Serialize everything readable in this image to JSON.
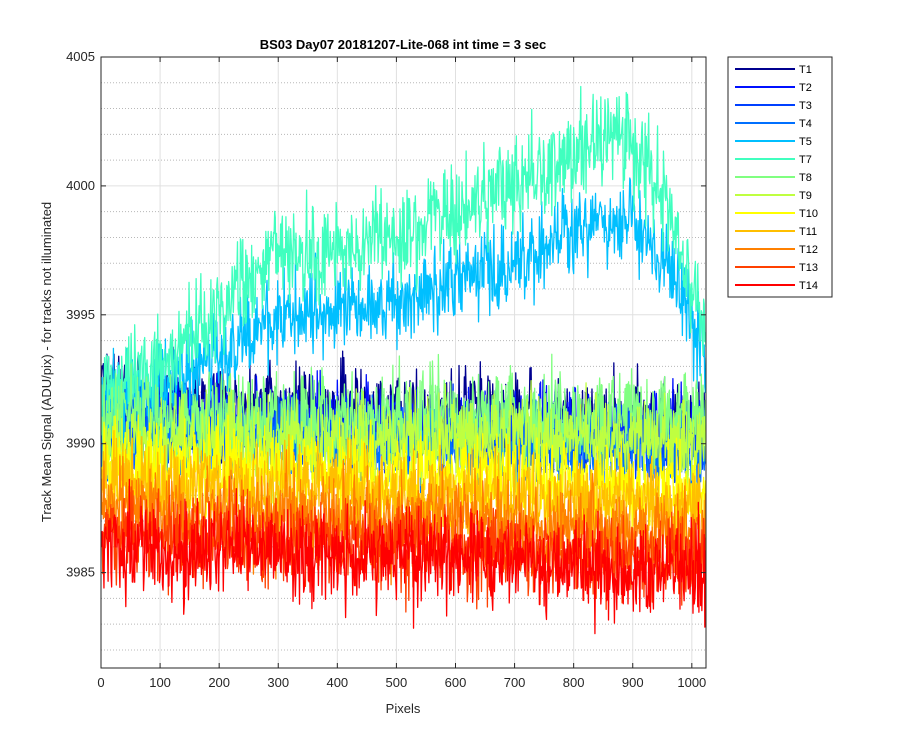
{
  "chart_data": {
    "type": "line",
    "title": "BS03 Day07 20181207-Lite-068 int time = 3 sec",
    "xlabel": "Pixels",
    "ylabel": "Track Mean Signal (ADU/pix) - for tracks not illuminated",
    "xlim": [
      0,
      1024
    ],
    "ylim": [
      3981.3,
      4005
    ],
    "xticks": [
      0,
      100,
      200,
      300,
      400,
      500,
      600,
      700,
      800,
      900,
      1000
    ],
    "yticks": [
      3985,
      3990,
      3995,
      4000,
      4005
    ],
    "grid": "major solid, minor dotted",
    "legend_position": "outside-right",
    "noise_note_points": 1024,
    "series": [
      {
        "name": "T1",
        "color": "#00008f",
        "baseline_x": [
          0,
          20,
          50,
          1024
        ],
        "baseline_y": [
          3992.5,
          3992.0,
          3991.5,
          3991.0
        ],
        "noise_amplitude": 1.5
      },
      {
        "name": "T2",
        "color": "#0010ff",
        "baseline_x": [
          0,
          1024
        ],
        "baseline_y": [
          3991.0,
          3990.5
        ],
        "noise_amplitude": 1.5
      },
      {
        "name": "T3",
        "color": "#0040ff",
        "baseline_x": [
          0,
          1024
        ],
        "baseline_y": [
          3990.5,
          3990.0
        ],
        "noise_amplitude": 1.4
      },
      {
        "name": "T4",
        "color": "#0070ff",
        "baseline_x": [
          0,
          400,
          800,
          1024
        ],
        "baseline_y": [
          3990.5,
          3990.0,
          3990.0,
          3989.5
        ],
        "noise_amplitude": 1.5
      },
      {
        "name": "T5",
        "color": "#00bfff",
        "baseline_x": [
          0,
          100,
          300,
          500,
          700,
          850,
          900,
          960,
          1024
        ],
        "baseline_y": [
          3991.5,
          3992.0,
          3995.0,
          3995.5,
          3997.0,
          3998.5,
          3998.5,
          3997.0,
          3993.0
        ],
        "noise_amplitude": 1.6
      },
      {
        "name": "T7",
        "color": "#40ffbf",
        "baseline_x": [
          0,
          100,
          300,
          500,
          700,
          850,
          900,
          960,
          1024
        ],
        "baseline_y": [
          3992.0,
          3993.0,
          3997.5,
          3998.0,
          4000.0,
          4002.0,
          4001.5,
          3999.5,
          3994.0
        ],
        "noise_amplitude": 1.8
      },
      {
        "name": "T8",
        "color": "#80ff80",
        "baseline_x": [
          0,
          1024
        ],
        "baseline_y": [
          3991.0,
          3991.0
        ],
        "noise_amplitude": 1.7
      },
      {
        "name": "T9",
        "color": "#bfff40",
        "baseline_x": [
          0,
          1024
        ],
        "baseline_y": [
          3990.0,
          3990.2
        ],
        "noise_amplitude": 1.6
      },
      {
        "name": "T10",
        "color": "#ffff00",
        "baseline_x": [
          0,
          400,
          800,
          1024
        ],
        "baseline_y": [
          3989.0,
          3989.0,
          3988.5,
          3988.0
        ],
        "noise_amplitude": 1.6
      },
      {
        "name": "T11",
        "color": "#ffbf00",
        "baseline_x": [
          0,
          1024
        ],
        "baseline_y": [
          3988.5,
          3987.5
        ],
        "noise_amplitude": 1.6
      },
      {
        "name": "T12",
        "color": "#ff8000",
        "baseline_x": [
          0,
          1024
        ],
        "baseline_y": [
          3987.5,
          3986.5
        ],
        "noise_amplitude": 1.6
      },
      {
        "name": "T13",
        "color": "#ff4000",
        "baseline_x": [
          0,
          1024
        ],
        "baseline_y": [
          3986.5,
          3985.5
        ],
        "noise_amplitude": 1.6
      },
      {
        "name": "T14",
        "color": "#ff0000",
        "baseline_x": [
          0,
          600,
          1024
        ],
        "baseline_y": [
          3986.0,
          3985.5,
          3985.0
        ],
        "noise_amplitude": 1.8
      }
    ]
  }
}
